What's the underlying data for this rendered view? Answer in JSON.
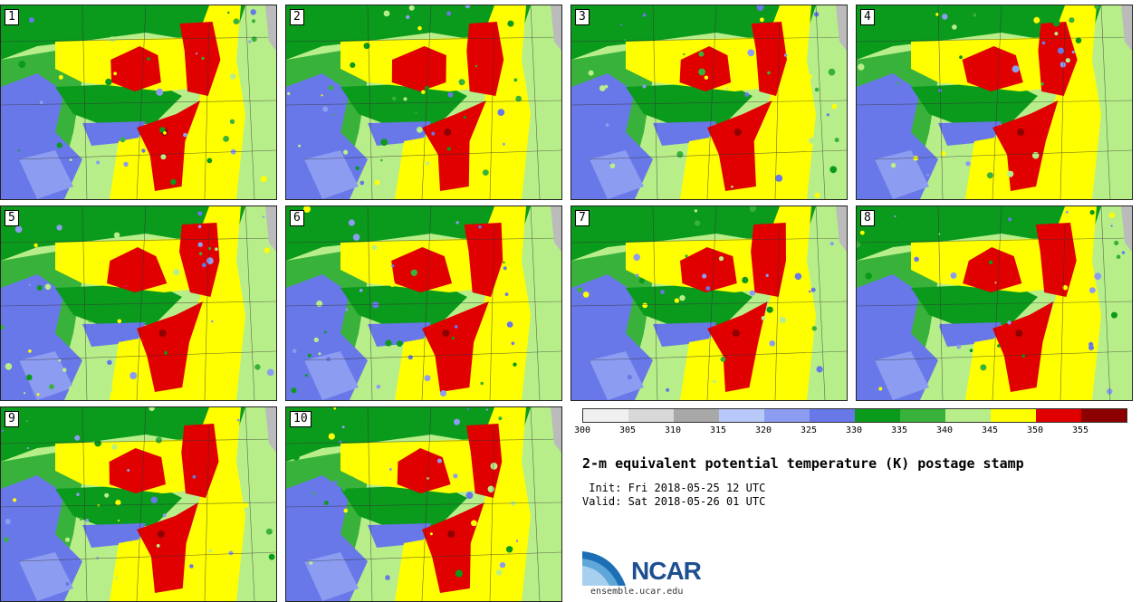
{
  "stamps": [
    {
      "member": "1"
    },
    {
      "member": "2"
    },
    {
      "member": "3"
    },
    {
      "member": "4"
    },
    {
      "member": "5"
    },
    {
      "member": "6"
    },
    {
      "member": "7"
    },
    {
      "member": "8"
    },
    {
      "member": "9"
    },
    {
      "member": "10"
    }
  ],
  "colorbar": {
    "colors": [
      "#f0f0f0",
      "#d8d8d8",
      "#a8a8a8",
      "#b8c8f8",
      "#8c9cf0",
      "#6878e8",
      "#0a9a1c",
      "#38b23a",
      "#b8ee8a",
      "#ffff00",
      "#e10000",
      "#8c0000"
    ],
    "ticks": [
      "300",
      "305",
      "310",
      "315",
      "320",
      "325",
      "330",
      "335",
      "340",
      "345",
      "350",
      "355"
    ]
  },
  "title": "2-m equivalent potential temperature (K) postage stamp",
  "init": " Init: Fri 2018-05-25 12 UTC",
  "valid": "Valid: Sat 2018-05-26 01 UTC",
  "logo": {
    "text": "NCAR",
    "site": "ensemble.ucar.edu"
  }
}
